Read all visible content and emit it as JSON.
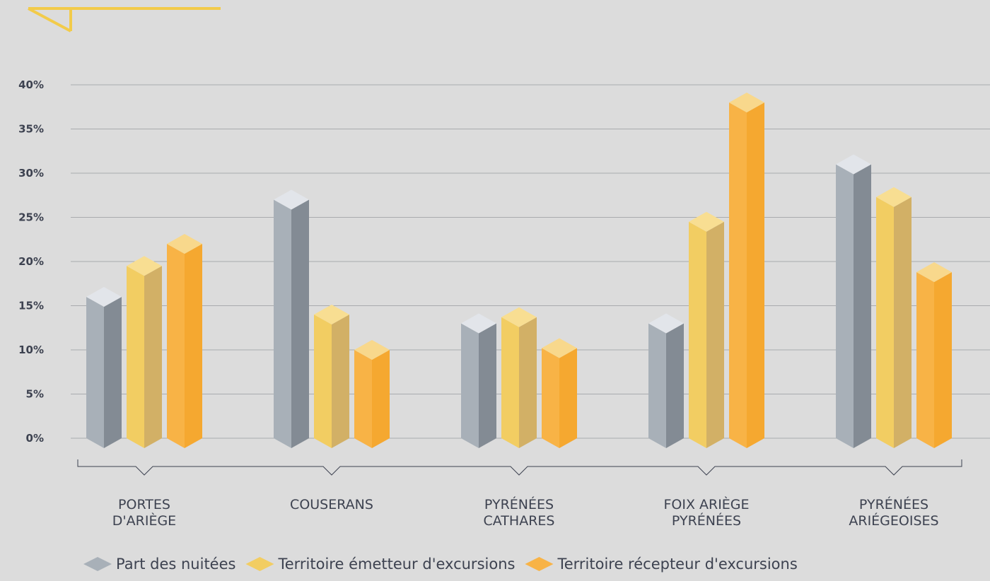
{
  "chart_data": {
    "type": "bar",
    "categories": [
      [
        "PORTES",
        "D'ARIÈGE"
      ],
      [
        "COUSERANS"
      ],
      [
        "PYRÉNÉES",
        "CATHARES"
      ],
      [
        "FOIX ARIÈGE",
        "PYRÉNÉES"
      ],
      [
        "PYRÉNÉES",
        "ARIÉGEOISES"
      ]
    ],
    "series": [
      {
        "name": "Part des nuitées",
        "values": [
          16,
          27,
          13,
          13,
          31
        ]
      },
      {
        "name": "Territoire émetteur d'excursions",
        "values": [
          19.5,
          14,
          13.7,
          24.5,
          27.3
        ]
      },
      {
        "name": "Territoire récepteur d'excursions",
        "values": [
          22,
          10,
          10.2,
          38,
          18.8
        ]
      }
    ],
    "y_ticks": [
      "0%",
      "5%",
      "10%",
      "15%",
      "20%",
      "25%",
      "30%",
      "35%",
      "40%"
    ],
    "ylim": [
      0,
      40
    ],
    "grid": true,
    "legend_position": "bottom",
    "colors": {
      "series_front": [
        "#a8b0b8",
        "#f2cd62",
        "#f8b346"
      ],
      "series_side": [
        "#838b94",
        "#d2b066",
        "#f5a830"
      ],
      "series_top": [
        "#e2e5ea",
        "#f8de92",
        "#f8d88c"
      ],
      "background": "#dcdcdc",
      "accent": "#f2cb4a"
    }
  }
}
